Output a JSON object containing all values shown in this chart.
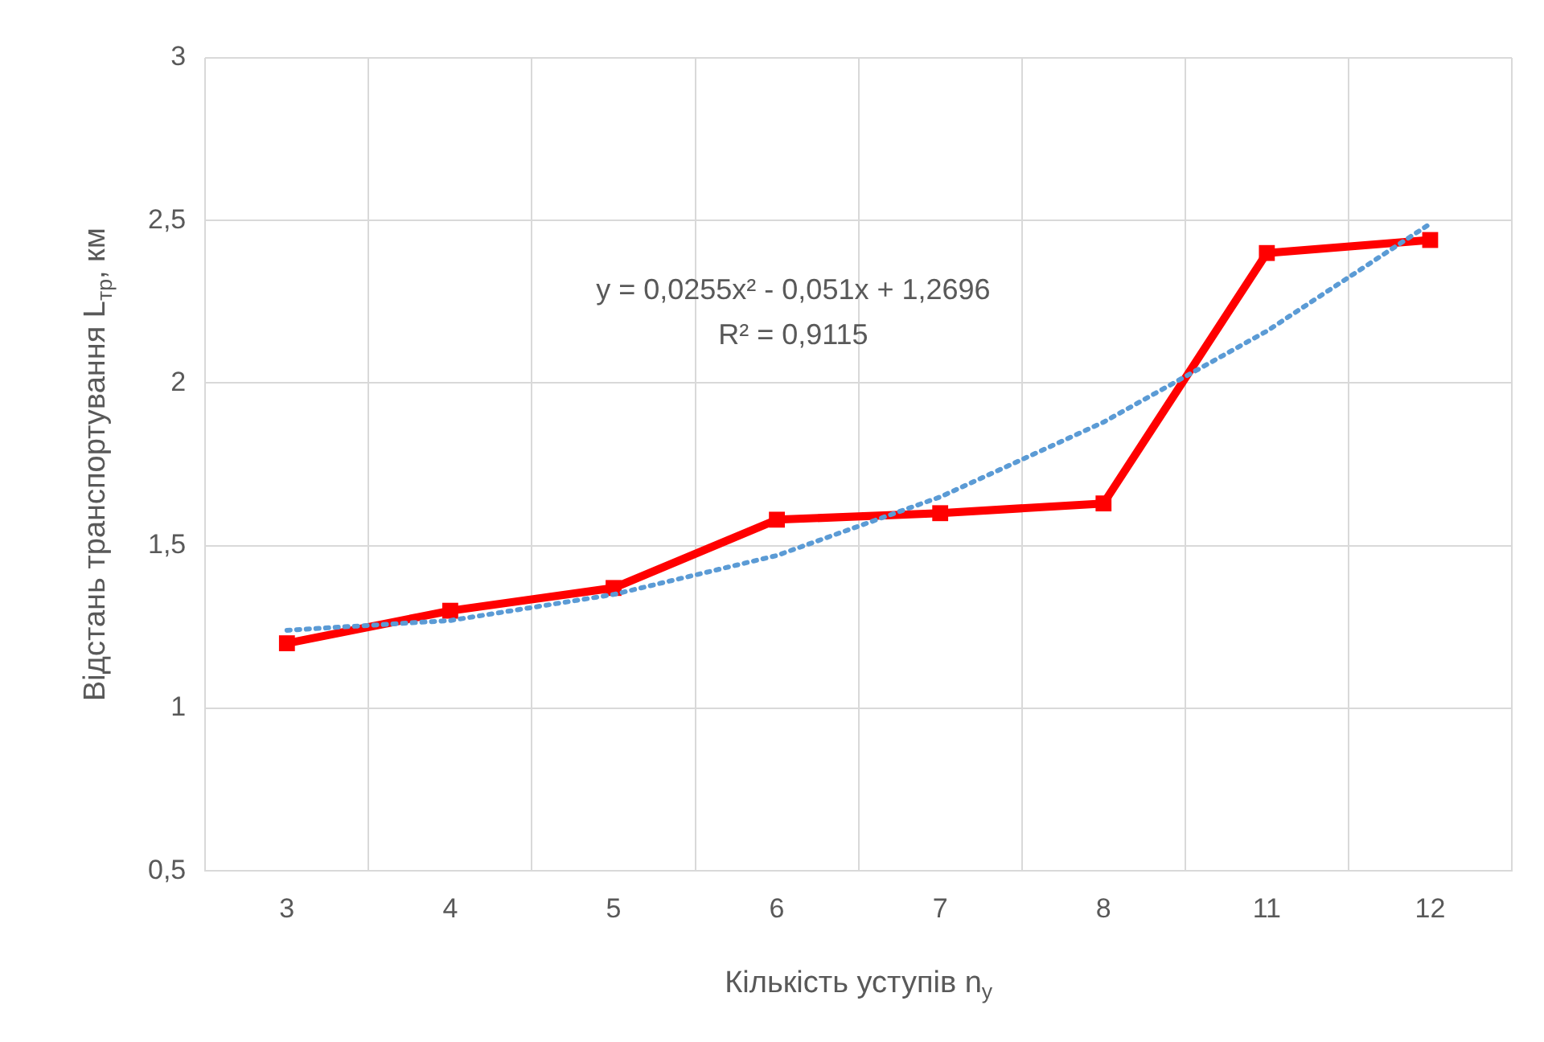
{
  "chart_data": {
    "type": "line",
    "xlabel": "Кількість уступів n$_{у}$",
    "ylabel": "Відстань транспортування L$_{тр}$, км",
    "categories": [
      "3",
      "4",
      "5",
      "6",
      "7",
      "8",
      "11",
      "12"
    ],
    "series": [
      {
        "color": "#ff0000",
        "marker": "square",
        "line_style": "solid",
        "values": [
          1.2,
          1.3,
          1.37,
          1.58,
          1.6,
          1.63,
          2.4,
          2.44
        ]
      },
      {
        "color": "#5b9bd5",
        "marker": "none",
        "line_style": "dotted",
        "values": [
          1.24,
          1.27,
          1.35,
          1.47,
          1.65,
          1.88,
          2.16,
          2.49
        ]
      }
    ],
    "ylim": [
      0.5,
      3
    ],
    "yticks": [
      {
        "value": 0.5,
        "label": "0,5"
      },
      1,
      {
        "value": 1.5,
        "label": "1,5"
      },
      2,
      {
        "value": 2.5,
        "label": "2,5"
      },
      3
    ],
    "grid": true,
    "legend": false,
    "annotations": [
      "y = 0,0255x² - 0,051x + 1,2696",
      "R² = 0,9115"
    ]
  }
}
